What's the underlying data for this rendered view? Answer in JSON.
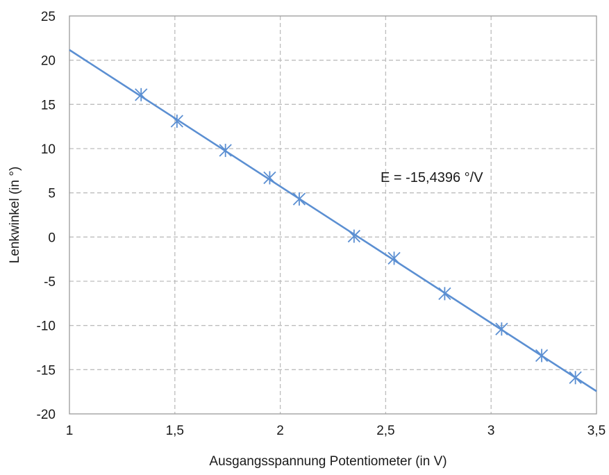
{
  "chart_data": {
    "type": "scatter",
    "title": "",
    "xlabel": "Ausgangsspannung Potentiometer (in V)",
    "ylabel": "Lenkwinkel (in °)",
    "xlim": [
      1,
      3.5
    ],
    "ylim": [
      -20,
      25
    ],
    "x_ticks": [
      "1",
      "1,5",
      "2",
      "2,5",
      "3",
      "3,5"
    ],
    "y_ticks": [
      "-20",
      "-15",
      "-10",
      "-5",
      "0",
      "5",
      "10",
      "15",
      "20",
      "25"
    ],
    "x_tick_values": [
      1,
      1.5,
      2,
      2.5,
      3,
      3.5
    ],
    "y_tick_values": [
      -20,
      -15,
      -10,
      -5,
      0,
      5,
      10,
      15,
      20,
      25
    ],
    "grid": true,
    "marker": "asterisk",
    "color": "#5b8fd2",
    "series": [
      {
        "x": [
          1.34,
          1.51,
          1.74,
          1.95,
          2.09,
          2.35,
          2.54,
          2.78,
          3.05,
          3.24,
          3.4
        ],
        "y": [
          16.1,
          13.1,
          9.8,
          6.7,
          4.3,
          0.1,
          -2.4,
          -6.4,
          -10.4,
          -13.4,
          -15.9
        ]
      }
    ],
    "trendline": {
      "slope": -15.4396,
      "intercept": 36.6,
      "x_range": [
        1,
        3.5
      ]
    },
    "annotation": "E = -15,4396 °/V"
  }
}
